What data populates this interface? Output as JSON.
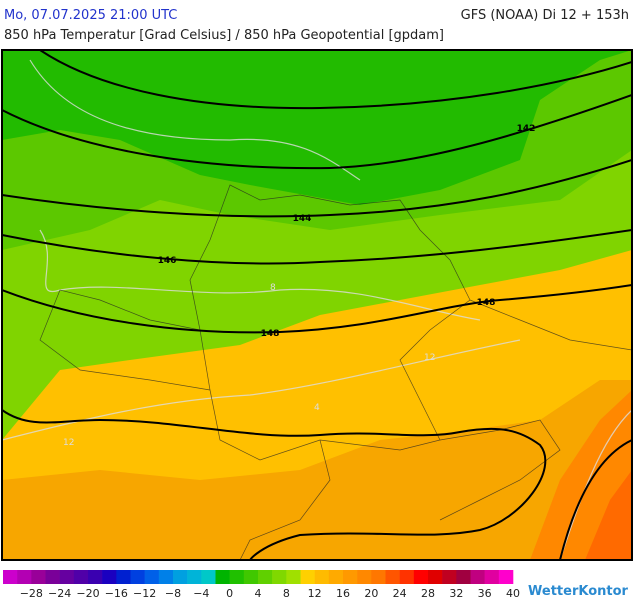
{
  "header": {
    "datetime": "Mo, 07.07.2025 21:00 UTC",
    "model": "GFS (NOAA) Di 12 + 153h",
    "subtitle": "850 hPa Temperatur [Grad Celsius] / 850 hPa Geopotential [gpdam]"
  },
  "map": {
    "contour_labels": [
      "142",
      "144",
      "146",
      "148",
      "148"
    ],
    "isotherm_labels": [
      "8",
      "12",
      "12",
      "4"
    ]
  },
  "colorbar": {
    "colors": [
      "#cc00cc",
      "#b300b3",
      "#990099",
      "#7a0099",
      "#6600a0",
      "#5000a8",
      "#3a00b0",
      "#1a00c0",
      "#0020d0",
      "#0040e0",
      "#0060e8",
      "#0080e8",
      "#00a0e0",
      "#00b4d8",
      "#00c8c8",
      "#00b400",
      "#20c000",
      "#40c800",
      "#60d000",
      "#80d800",
      "#a0e000",
      "#ffd000",
      "#ffbb00",
      "#ffaa00",
      "#ff9900",
      "#ff8800",
      "#ff7700",
      "#ff5500",
      "#ff3300",
      "#ff0000",
      "#e00000",
      "#c00020",
      "#a00040",
      "#c00080",
      "#e000a0",
      "#ff00cc"
    ],
    "labels": [
      "−28",
      "−24",
      "−20",
      "−16",
      "−12",
      "−8",
      "−4",
      "0",
      "4",
      "8",
      "12",
      "16",
      "20",
      "24",
      "28",
      "32",
      "36",
      "40"
    ]
  },
  "brand": "WetterKontor"
}
